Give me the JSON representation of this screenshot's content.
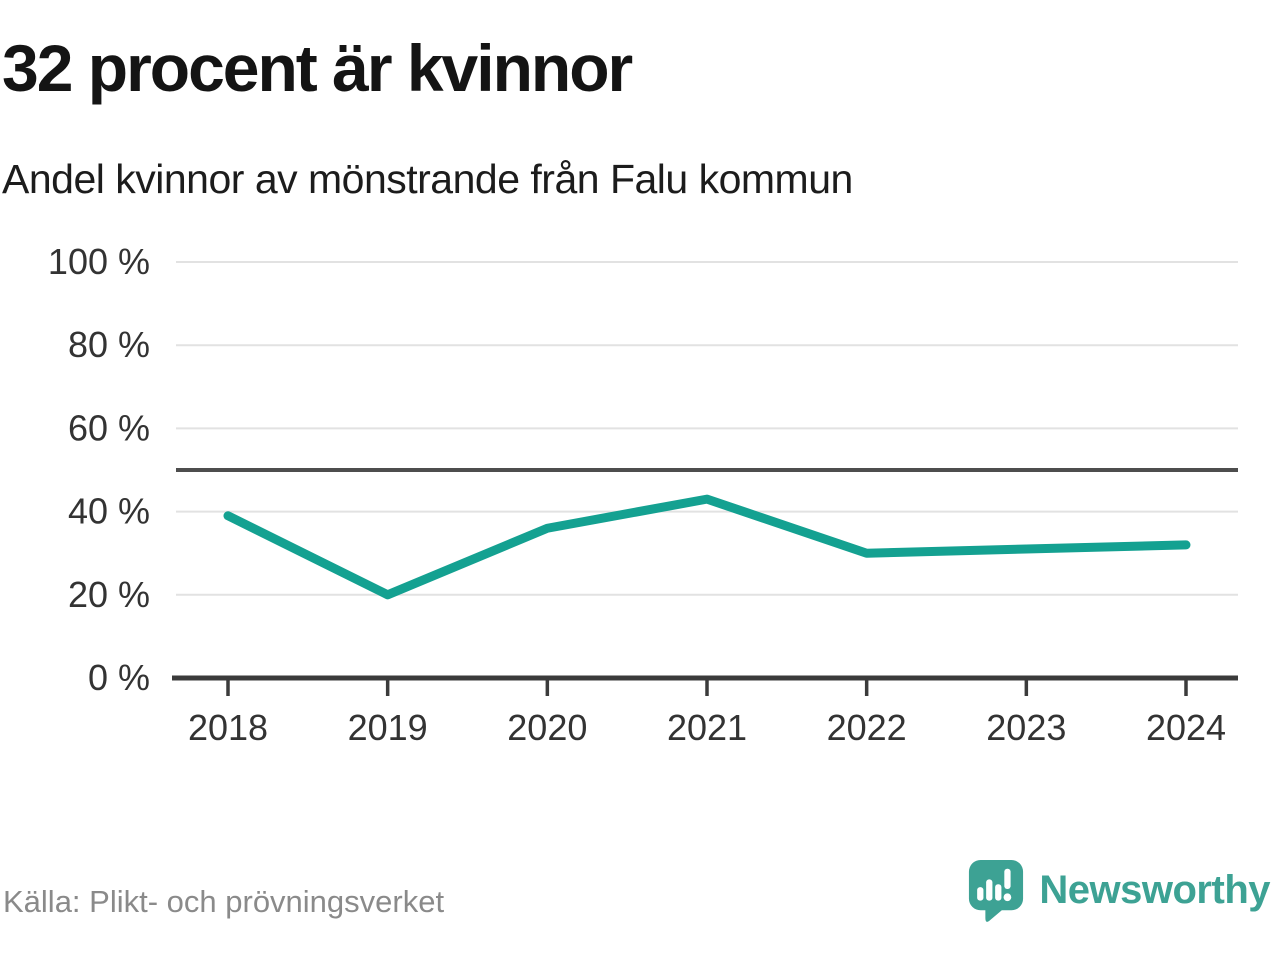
{
  "header": {
    "title": "32 procent är kvinnor",
    "subtitle": "Andel kvinnor av mönstrande från Falu kommun"
  },
  "chart_data": {
    "type": "line",
    "x": [
      "2018",
      "2019",
      "2020",
      "2021",
      "2022",
      "2023",
      "2024"
    ],
    "series": [
      {
        "name": "Andel kvinnor av mönstrande",
        "values": [
          39,
          20,
          36,
          43,
          30,
          31,
          32
        ]
      }
    ],
    "unit": "%",
    "ylim": [
      0,
      100
    ],
    "yticks": [
      0,
      20,
      40,
      60,
      80,
      100
    ],
    "ytick_suffix": " %",
    "reference_line": {
      "value": 50
    },
    "grid": true,
    "legend": "none",
    "colors": {
      "line": "#14a191",
      "grid": "#e2e2e2",
      "reference": "#4d4d4d",
      "axis": "#3b3b3b",
      "tick_label": "#333333"
    }
  },
  "footer": {
    "source": "Källa: Plikt- och prövningsverket",
    "brand": "Newsworthy",
    "brand_color": "#3da294",
    "logo_icon": "speech-bubble-bar-chart"
  }
}
